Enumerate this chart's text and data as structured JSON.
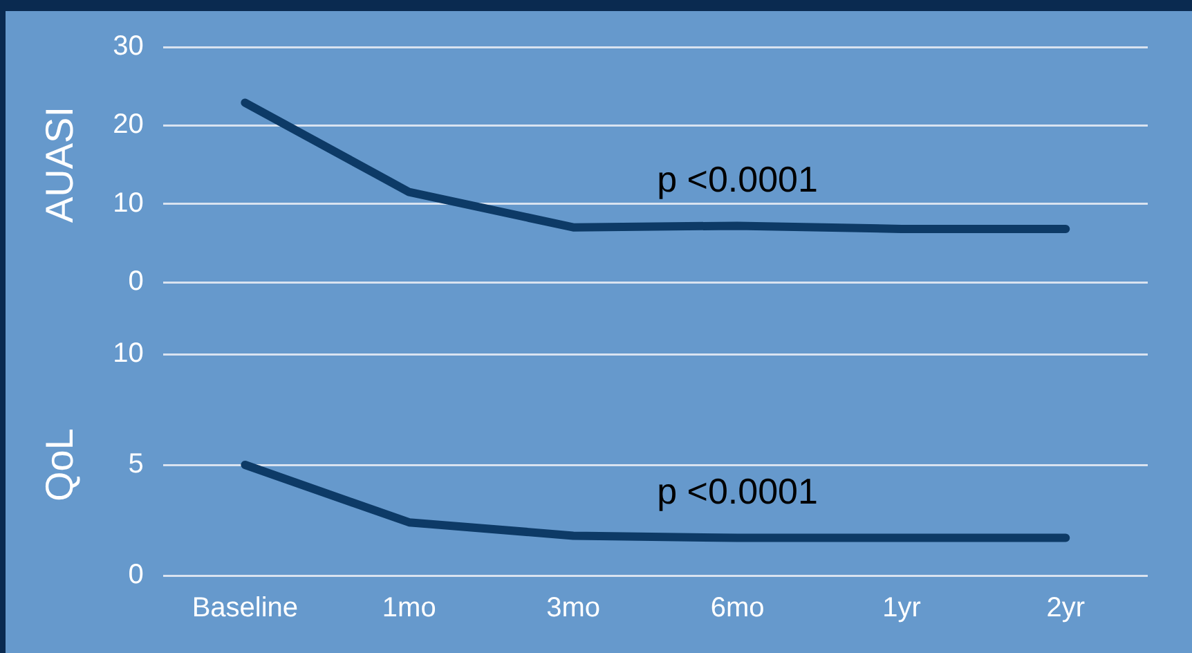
{
  "chart_data": [
    {
      "type": "line",
      "ylabel": "AUASI",
      "categories": [
        null,
        null,
        null,
        null,
        null,
        null
      ],
      "series": [
        {
          "color": "#0d3a66",
          "values": [
            22.9,
            11.5,
            7.0,
            7.2,
            6.8,
            6.8
          ]
        }
      ],
      "ylim": [
        0,
        30
      ],
      "yticks": [
        0,
        10,
        20,
        30
      ],
      "grid": "y",
      "tick_labels": "y",
      "legend": false,
      "marker": "none",
      "line_style": "solid",
      "annotations": [
        "p <0.0001"
      ]
    },
    {
      "type": "line",
      "ylabel": "QoL",
      "categories": [
        "Baseline",
        "1mo",
        "3mo",
        "6mo",
        "1yr",
        "2yr"
      ],
      "series": [
        {
          "color": "#0d3a66",
          "values": [
            5.0,
            2.4,
            1.8,
            1.7,
            1.7,
            1.7
          ]
        }
      ],
      "ylim": [
        0,
        10
      ],
      "yticks": [
        0,
        5,
        10
      ],
      "grid": "y",
      "legend": false,
      "marker": "none",
      "line_style": "solid",
      "annotations": [
        "p <0.0001"
      ]
    }
  ]
}
